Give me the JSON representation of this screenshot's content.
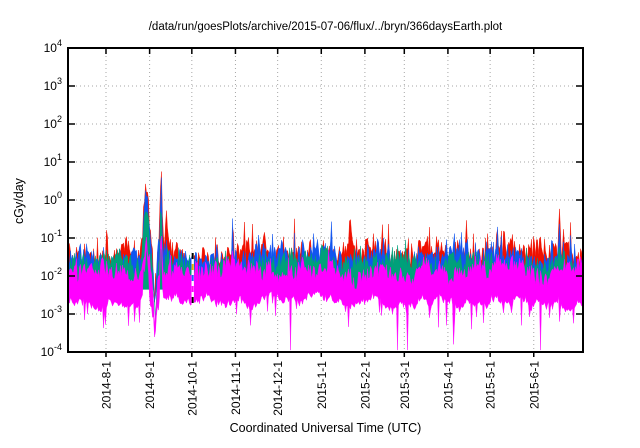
{
  "chart_data": {
    "type": "line",
    "title": "/data/run/goesPlots/archive/2015-07-06/flux/../bryn/366daysEarth.plot",
    "xlabel": "Coordinated Universal Time (UTC)",
    "ylabel": "cGy/day",
    "y_scale": "log10",
    "ylim": [
      0.0001,
      10000
    ],
    "y_tick_exponents": [
      4,
      3,
      2,
      1,
      0,
      -1,
      -2,
      -3,
      -4
    ],
    "x_total_days": 366,
    "x_ticks": [
      {
        "label": "2014-8-1",
        "day": 27
      },
      {
        "label": "2014-9-1",
        "day": 58
      },
      {
        "label": "2014-10-1",
        "day": 88
      },
      {
        "label": "2014-11-1",
        "day": 119
      },
      {
        "label": "2014-12-1",
        "day": 149
      },
      {
        "label": "2015-1-1",
        "day": 180
      },
      {
        "label": "2015-2-1",
        "day": 211
      },
      {
        "label": "2015-3-1",
        "day": 239
      },
      {
        "label": "2015-4-1",
        "day": 270
      },
      {
        "label": "2015-5-1",
        "day": 300
      },
      {
        "label": "2015-6-1",
        "day": 331
      }
    ],
    "grid": {
      "show": true,
      "style": "dotted",
      "color": "#a6a6a6"
    },
    "frame_color": "#000000",
    "noise_seed": 20150706,
    "series": [
      {
        "name": "red",
        "color": "#f01000",
        "baseline_log": -1.42,
        "jitter": 0.3,
        "lower_log": -2.35
      },
      {
        "name": "blue",
        "color": "#1155f0",
        "baseline_log": -1.55,
        "jitter": 0.28,
        "lower_log": -2.35
      },
      {
        "name": "teal",
        "color": "#00a07a",
        "baseline_log": -1.7,
        "jitter": 0.24,
        "lower_log": -2.35
      },
      {
        "name": "magenta",
        "color": "#ff00ff",
        "baseline_log": -1.85,
        "jitter": 0.2,
        "band_bottom_log": -2.62,
        "bottom_fuzz": 0.38
      }
    ],
    "events": {
      "storm": {
        "hump": {
          "day": 55.5,
          "sigma": 2.4,
          "amps": [
            1.92,
            1.8,
            1.62,
            0.92
          ]
        },
        "notch": {
          "day": 61.8,
          "sigma": 1.4,
          "depth": 1.35
        },
        "spike": {
          "day": 66.2,
          "sigma": 0.9,
          "amps": [
            2.05,
            1.95,
            1.55,
            0.85
          ]
        },
        "shoulder": {
          "day": 70.0,
          "sigma": 2.0,
          "amps": [
            0.65,
            0.45,
            0.25,
            0.1
          ]
        }
      },
      "minor_spikes": [
        {
          "day": 41,
          "sigma": 0.6,
          "amps": [
            0.45,
            0.25,
            0.1,
            0
          ]
        },
        {
          "day": 47,
          "sigma": 0.5,
          "amps": [
            0.5,
            0.3,
            0.1,
            0
          ]
        },
        {
          "day": 117,
          "sigma": 0.5,
          "amps": [
            0.95,
            0.6,
            0.25,
            0.05
          ]
        },
        {
          "day": 150,
          "sigma": 0.4,
          "amps": [
            0.5,
            0.3,
            0.1,
            0
          ]
        },
        {
          "day": 161,
          "sigma": 0.45,
          "amps": [
            0.75,
            0.45,
            0.15,
            0
          ]
        },
        {
          "day": 167,
          "sigma": 0.4,
          "amps": [
            0.55,
            0.3,
            0.1,
            0
          ]
        },
        {
          "day": 187,
          "sigma": 0.45,
          "amps": [
            0.55,
            0.6,
            0.2,
            0
          ]
        },
        {
          "day": 201,
          "sigma": 0.4,
          "amps": [
            0.55,
            0.35,
            0.1,
            0
          ]
        },
        {
          "day": 228,
          "sigma": 0.45,
          "amps": [
            0.6,
            0.35,
            0.1,
            0
          ]
        },
        {
          "day": 242,
          "sigma": 0.4,
          "amps": [
            0.5,
            0.3,
            0.1,
            0
          ]
        },
        {
          "day": 257,
          "sigma": 0.4,
          "amps": [
            0.45,
            0.25,
            0,
            0
          ]
        },
        {
          "day": 283,
          "sigma": 0.45,
          "amps": [
            0.65,
            0.35,
            0.1,
            0
          ]
        },
        {
          "day": 305,
          "sigma": 0.5,
          "amps": [
            1.0,
            0.75,
            0.3,
            0.1
          ]
        },
        {
          "day": 308,
          "sigma": 0.4,
          "amps": [
            0.8,
            0.55,
            0.2,
            0
          ]
        },
        {
          "day": 344,
          "sigma": 0.4,
          "amps": [
            1.0,
            0.6,
            0.2,
            0.05
          ]
        },
        {
          "day": 349,
          "sigma": 0.55,
          "amps": [
            1.5,
            1.15,
            0.45,
            0.2
          ]
        },
        {
          "day": 352,
          "sigma": 0.4,
          "amps": [
            0.85,
            0.6,
            0.2,
            0.05
          ]
        },
        {
          "day": 357,
          "sigma": 0.45,
          "amps": [
            0.7,
            0.45,
            0.15,
            0
          ]
        }
      ],
      "dropouts": [
        {
          "day": 14,
          "depth": -3.0,
          "w": 0.6
        },
        {
          "day": 120,
          "depth": -3.0,
          "w": 0.6
        },
        {
          "day": 158,
          "depth": -3.95,
          "w": 0.9
        },
        {
          "day": 234,
          "depth": -3.95,
          "w": 0.9
        },
        {
          "day": 241.5,
          "depth": -3.95,
          "w": 0.9
        },
        {
          "day": 257,
          "depth": -3.1,
          "w": 0.7
        },
        {
          "day": 263,
          "depth": -3.35,
          "w": 0.7
        },
        {
          "day": 269,
          "depth": -3.3,
          "w": 0.7
        },
        {
          "day": 274,
          "depth": -3.8,
          "w": 0.8
        },
        {
          "day": 287,
          "depth": -3.4,
          "w": 0.7
        },
        {
          "day": 322,
          "depth": -3.3,
          "w": 0.7
        },
        {
          "day": 336,
          "depth": -3.95,
          "w": 0.9
        },
        {
          "day": 349.5,
          "depth": -3.2,
          "w": 0.6
        }
      ],
      "data_gap": {
        "day": 88.6,
        "width_days": 1.7,
        "marker_colors": [
          "#000000",
          "#e0b000",
          "#2060ff",
          "#ff00ff"
        ]
      }
    }
  }
}
